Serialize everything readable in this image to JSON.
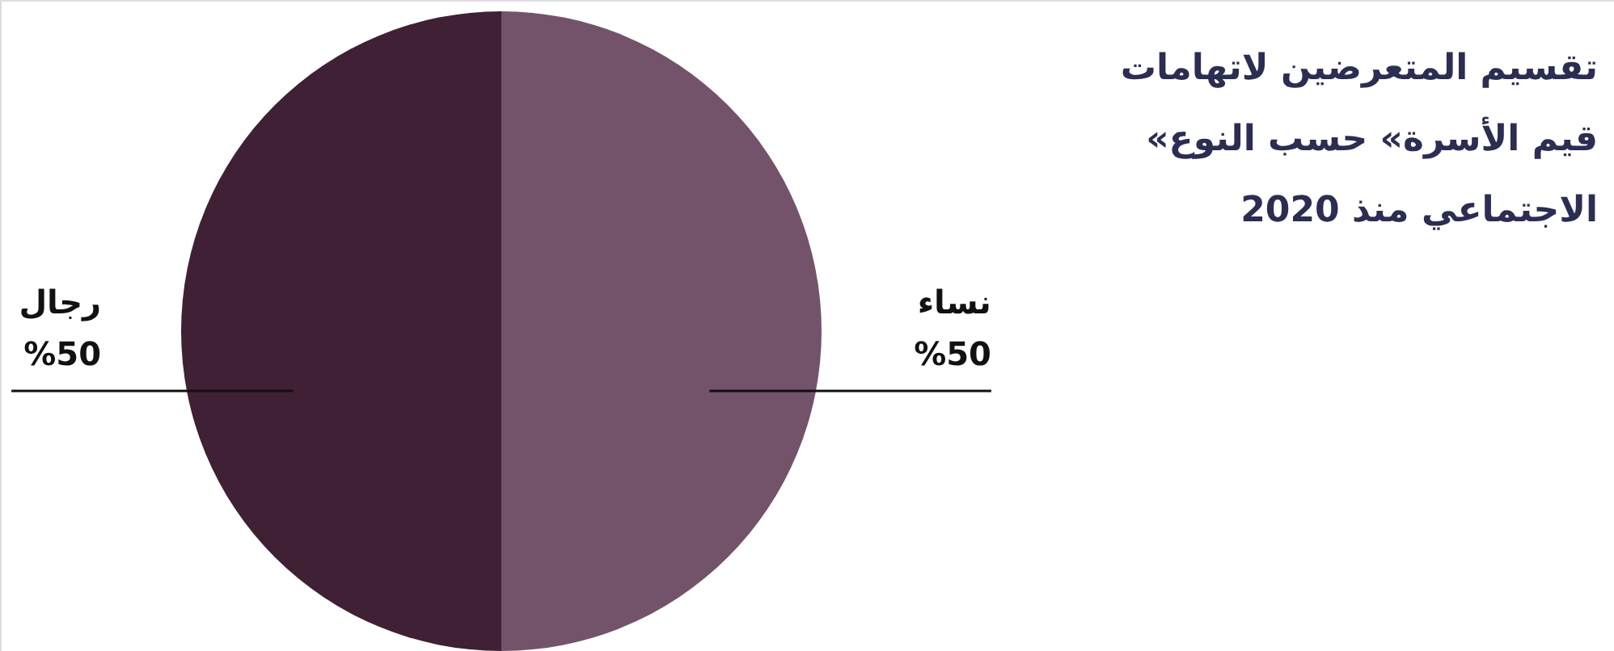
{
  "chart_data": {
    "type": "pie",
    "title": "تقسيم المتعرضين لاتهامات\n«قيم الأسرة» حسب النوع\nالاجتماعي منذ 2020",
    "categories": [
      "نساء",
      "رجال"
    ],
    "values": [
      50,
      50
    ],
    "colors": [
      "#73536a",
      "#3f2035"
    ],
    "value_labels": [
      "%50",
      "%50"
    ]
  }
}
